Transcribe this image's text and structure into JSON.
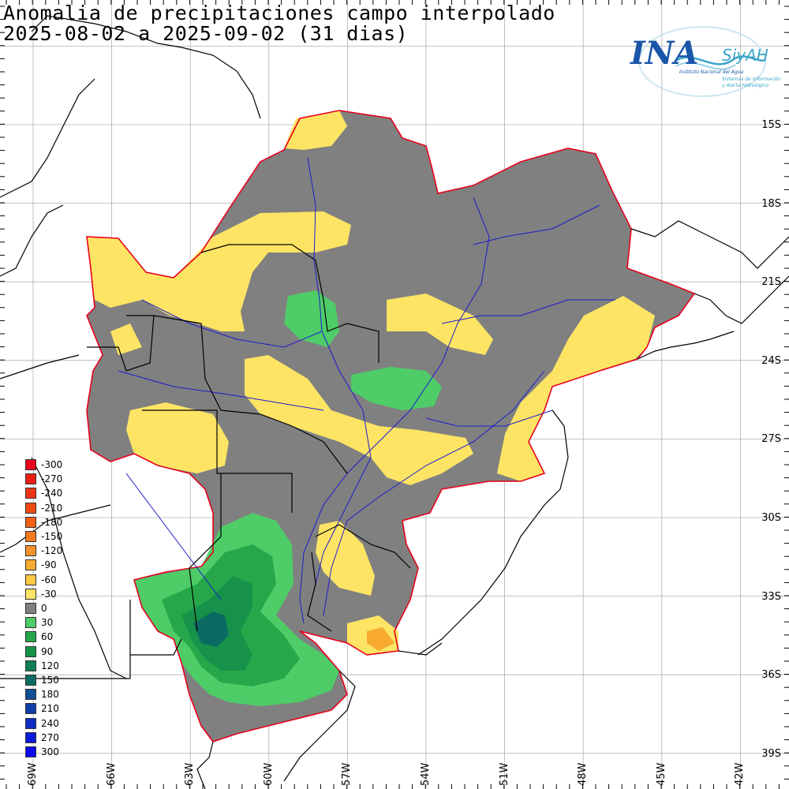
{
  "title": {
    "line1": "Anomalia de precipitaciones campo interpolado",
    "line2": "2025-08-02 a 2025-09-02 (31 dias)"
  },
  "logo": {
    "brand": "INA",
    "system": "SiyAH",
    "subtitle1": "Instituto Nacional del Agua",
    "subtitle2": "Sistemas de información",
    "subtitle3": "y Alerta Hidrológico",
    "brand_color": "#1a56a8",
    "wave_color": "#3aa5c9"
  },
  "legend": [
    {
      "label": "-300",
      "color": "#e8001e"
    },
    {
      "label": "-270",
      "color": "#eb1e14"
    },
    {
      "label": "-240",
      "color": "#ee3414"
    },
    {
      "label": "-210",
      "color": "#f04a14"
    },
    {
      "label": "-180",
      "color": "#f26014"
    },
    {
      "label": "-150",
      "color": "#f47a1e"
    },
    {
      "label": "-120",
      "color": "#f6912a"
    },
    {
      "label": "-90",
      "color": "#f8aa30"
    },
    {
      "label": "-60",
      "color": "#fbc842"
    },
    {
      "label": "-30",
      "color": "#fde464"
    },
    {
      "label": "0",
      "color": "#808080"
    },
    {
      "label": "30",
      "color": "#4ecc68"
    },
    {
      "label": "60",
      "color": "#26a84a"
    },
    {
      "label": "90",
      "color": "#17924a"
    },
    {
      "label": "120",
      "color": "#0f7e52"
    },
    {
      "label": "150",
      "color": "#0b6a62"
    },
    {
      "label": "180",
      "color": "#114e96"
    },
    {
      "label": "210",
      "color": "#103ea8"
    },
    {
      "label": "240",
      "color": "#0d2cc4"
    },
    {
      "label": "270",
      "color": "#0a1ad8"
    },
    {
      "label": "300",
      "color": "#0a0aee"
    }
  ],
  "lat_labels": [
    "15S",
    "18S",
    "21S",
    "24S",
    "27S",
    "30S",
    "33S",
    "36S",
    "39S"
  ],
  "lon_labels": [
    "69W",
    "66W",
    "63W",
    "60W",
    "57W",
    "54W",
    "51W",
    "48W",
    "45W",
    "42W"
  ],
  "map_colors": {
    "gray": "#808080",
    "yellow": "#fde464",
    "green_light": "#4ecc68",
    "green_mid": "#26a84a",
    "green_dark": "#17924a",
    "green_deep": "#0b6a62",
    "orange": "#f8aa30",
    "basin_border": "#e8001e",
    "rivers": "#1c1ccc",
    "borders": "#000000",
    "grid": "#b0b0b0"
  }
}
